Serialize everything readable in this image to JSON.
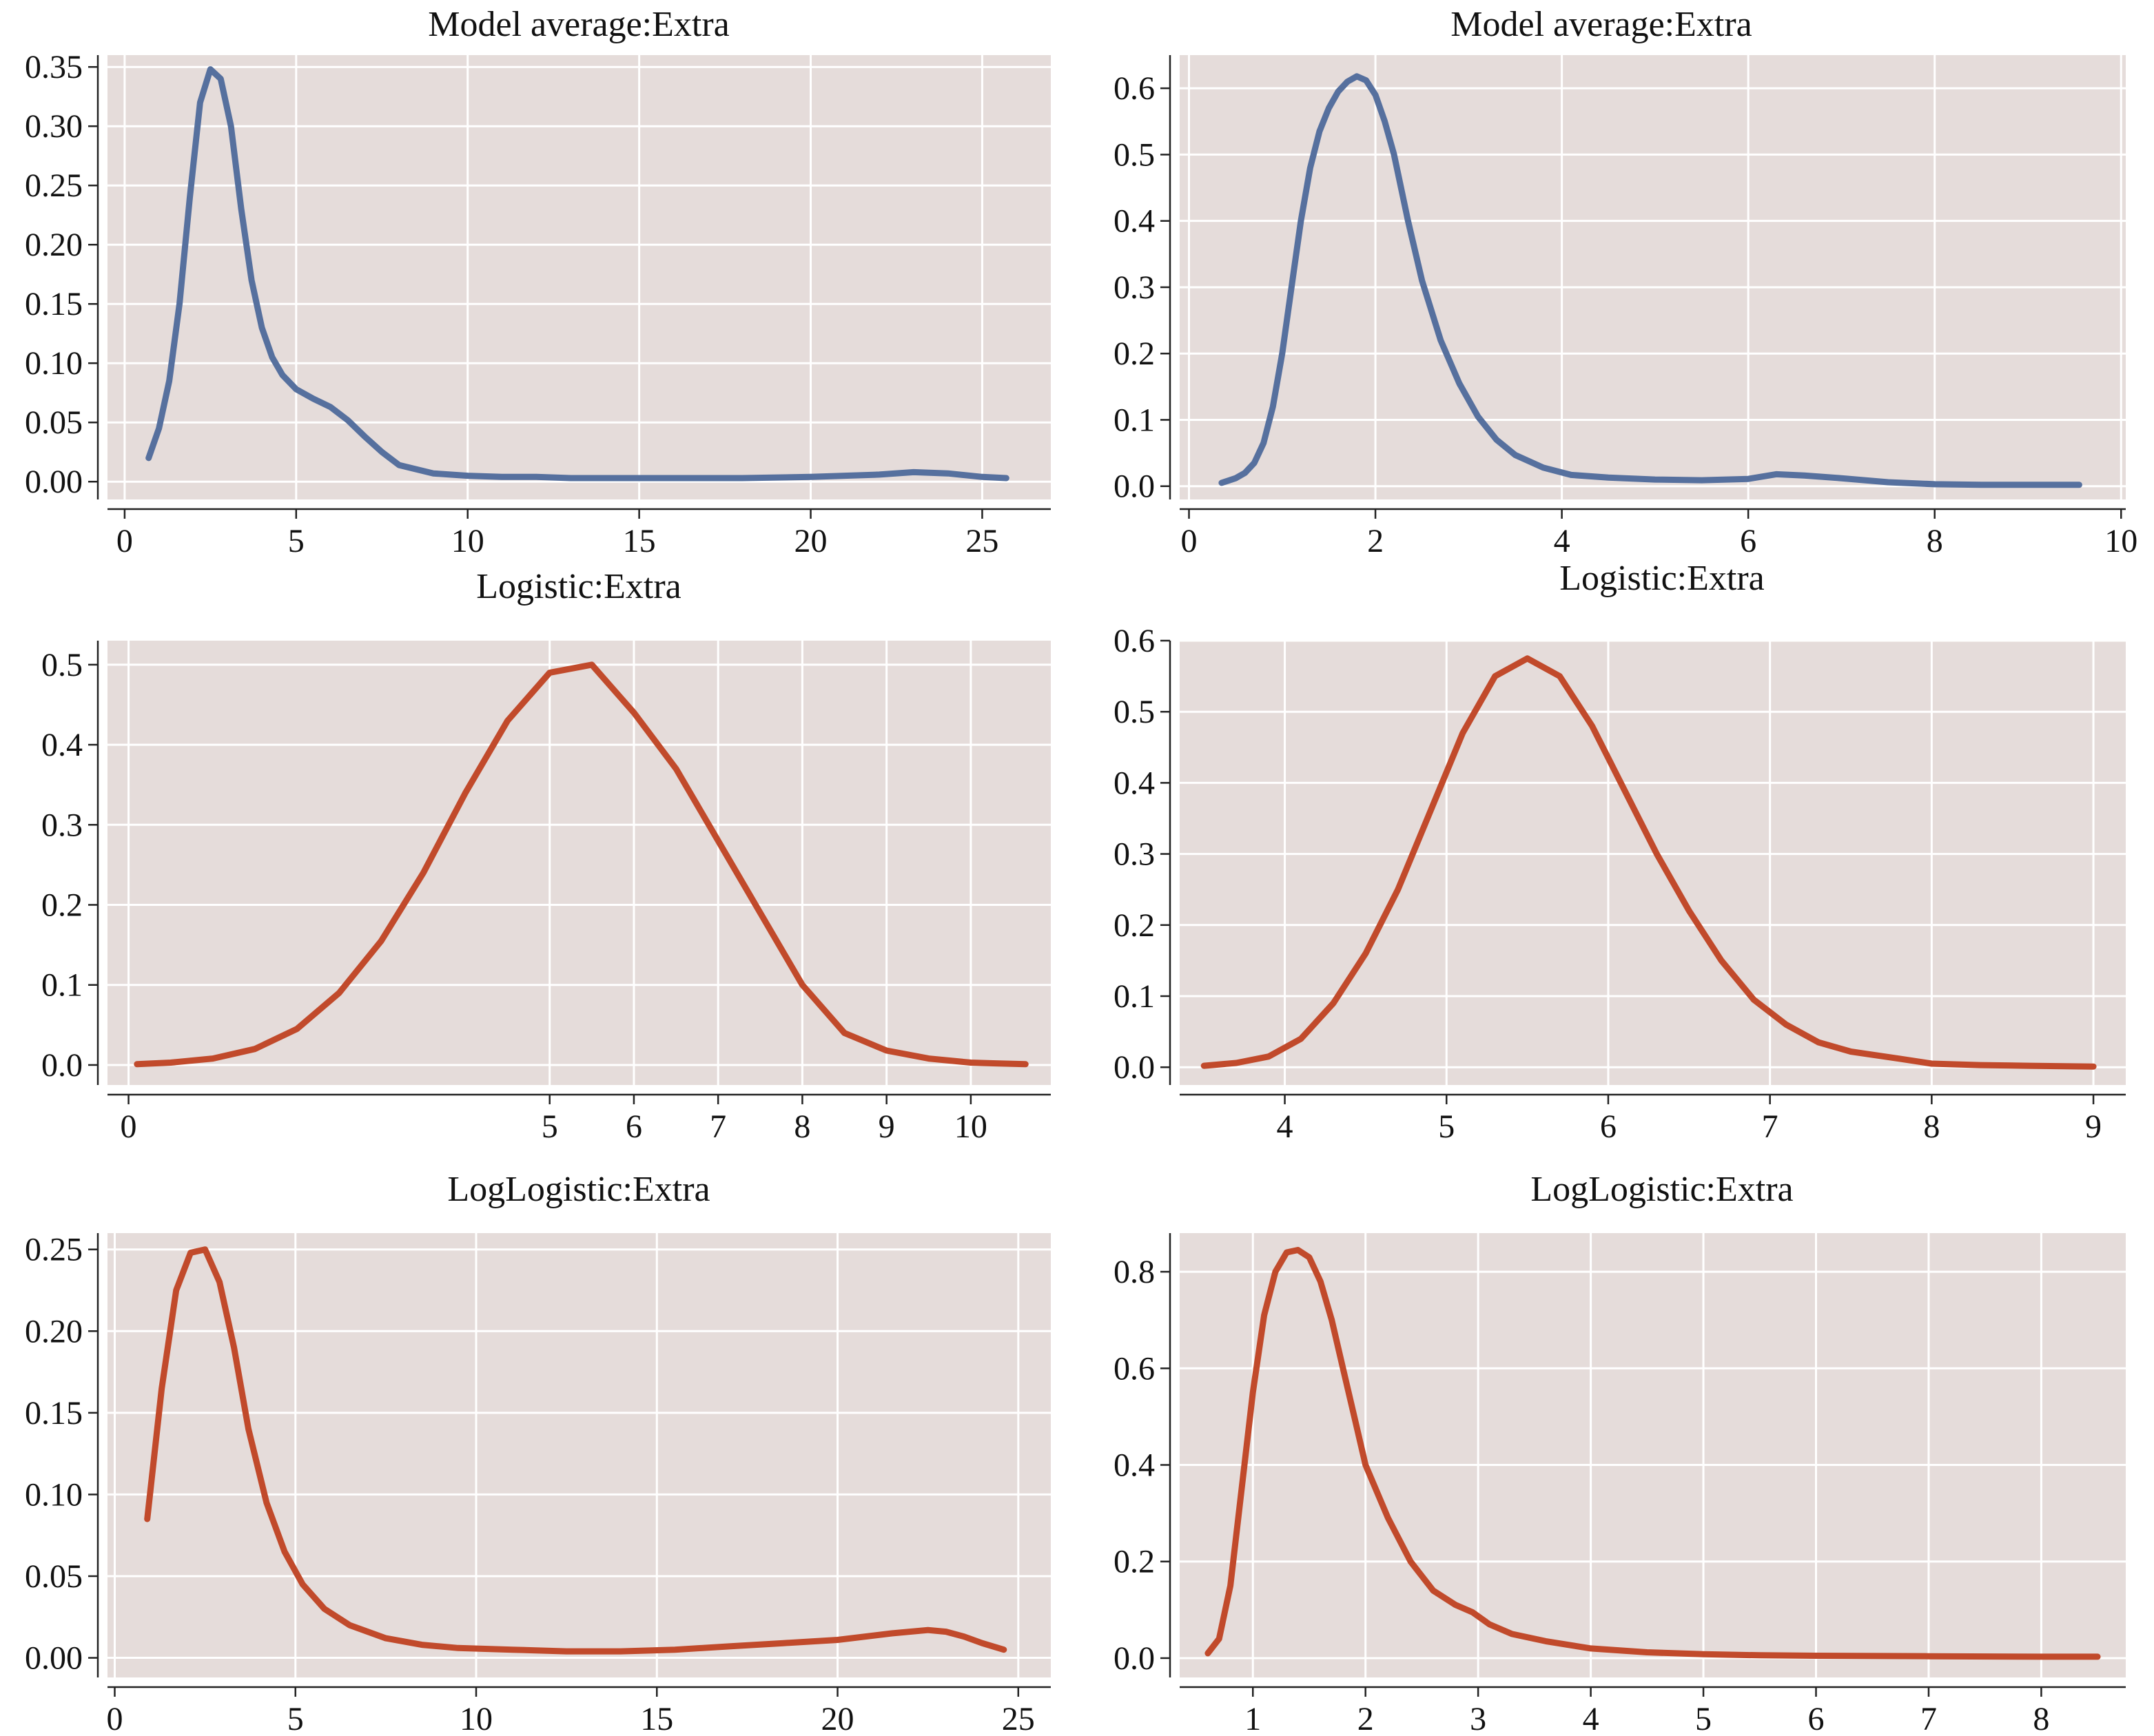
{
  "chart_data": [
    {
      "type": "line",
      "title": "Model average:Extra",
      "color": "#56709e",
      "xlim": [
        -0.5,
        27
      ],
      "ylim": [
        -0.015,
        0.36
      ],
      "xticks": [
        0,
        5,
        10,
        15,
        20,
        25
      ],
      "yticks": [
        0.0,
        0.05,
        0.1,
        0.15,
        0.2,
        0.25,
        0.3,
        0.35
      ],
      "ytick_labels": [
        "0.00",
        "0.05",
        "0.10",
        "0.15",
        "0.20",
        "0.25",
        "0.30",
        "0.35"
      ],
      "xtick_labels": [
        "0",
        "5",
        "10",
        "15",
        "20",
        "25"
      ],
      "series": [
        {
          "x": [
            0.7,
            1.0,
            1.3,
            1.6,
            1.9,
            2.2,
            2.5,
            2.8,
            3.1,
            3.4,
            3.7,
            4.0,
            4.3,
            4.6,
            5.0,
            5.5,
            6.0,
            6.5,
            7.0,
            7.5,
            8.0,
            9.0,
            10.0,
            11.0,
            12.0,
            13.0,
            14.0,
            16.0,
            18.0,
            20.0,
            22.0,
            23.0,
            24.0,
            25.0,
            25.7
          ],
          "y": [
            0.02,
            0.045,
            0.085,
            0.15,
            0.24,
            0.32,
            0.348,
            0.34,
            0.3,
            0.23,
            0.17,
            0.13,
            0.105,
            0.09,
            0.078,
            0.07,
            0.063,
            0.052,
            0.038,
            0.025,
            0.014,
            0.007,
            0.005,
            0.004,
            0.004,
            0.003,
            0.003,
            0.003,
            0.003,
            0.004,
            0.006,
            0.008,
            0.007,
            0.004,
            0.003
          ]
        }
      ]
    },
    {
      "type": "line",
      "title": "Model average:Extra",
      "color": "#56709e",
      "xlim": [
        -0.1,
        10.05
      ],
      "ylim": [
        -0.02,
        0.65
      ],
      "xticks": [
        0,
        2,
        4,
        6,
        8,
        10
      ],
      "yticks": [
        0.0,
        0.1,
        0.2,
        0.3,
        0.4,
        0.5,
        0.6
      ],
      "ytick_labels": [
        "0.0",
        "0.1",
        "0.2",
        "0.3",
        "0.4",
        "0.5",
        "0.6"
      ],
      "xtick_labels": [
        "0",
        "2",
        "4",
        "6",
        "8",
        "10"
      ],
      "series": [
        {
          "x": [
            0.35,
            0.5,
            0.6,
            0.7,
            0.8,
            0.9,
            1.0,
            1.1,
            1.2,
            1.3,
            1.4,
            1.5,
            1.6,
            1.7,
            1.8,
            1.9,
            2.0,
            2.1,
            2.2,
            2.35,
            2.5,
            2.7,
            2.9,
            3.1,
            3.3,
            3.5,
            3.8,
            4.1,
            4.5,
            5.0,
            5.5,
            6.0,
            6.3,
            6.6,
            7.0,
            7.5,
            8.0,
            8.5,
            9.0,
            9.55
          ],
          "y": [
            0.005,
            0.012,
            0.02,
            0.035,
            0.065,
            0.12,
            0.2,
            0.3,
            0.4,
            0.48,
            0.535,
            0.57,
            0.595,
            0.61,
            0.618,
            0.612,
            0.59,
            0.55,
            0.5,
            0.4,
            0.31,
            0.22,
            0.155,
            0.105,
            0.07,
            0.047,
            0.028,
            0.017,
            0.013,
            0.01,
            0.009,
            0.011,
            0.018,
            0.016,
            0.012,
            0.006,
            0.003,
            0.002,
            0.002,
            0.002
          ]
        }
      ]
    },
    {
      "type": "line",
      "title": "Logistic:Extra",
      "color": "#c14a2b",
      "xlim": [
        -0.25,
        10.95
      ],
      "ylim": [
        -0.025,
        0.53
      ],
      "xticks": [
        0,
        5,
        6,
        7,
        8,
        9,
        10
      ],
      "yticks": [
        0.0,
        0.1,
        0.2,
        0.3,
        0.4,
        0.5
      ],
      "ytick_labels": [
        "0.0",
        "0.1",
        "0.2",
        "0.3",
        "0.4",
        "0.5"
      ],
      "xtick_labels": [
        "0",
        "5",
        "6",
        "7",
        "8",
        "9",
        "10"
      ],
      "series": [
        {
          "x": [
            0.1,
            0.5,
            1.0,
            1.5,
            2.0,
            2.5,
            3.0,
            3.5,
            4.0,
            4.5,
            5.0,
            5.5,
            6.0,
            6.5,
            7.0,
            7.5,
            8.0,
            8.5,
            9.0,
            9.5,
            10.0,
            10.3,
            10.65
          ],
          "y": [
            0.001,
            0.003,
            0.008,
            0.02,
            0.045,
            0.09,
            0.155,
            0.24,
            0.34,
            0.43,
            0.49,
            0.5,
            0.44,
            0.37,
            0.28,
            0.19,
            0.1,
            0.04,
            0.018,
            0.008,
            0.003,
            0.002,
            0.001
          ]
        }
      ]
    },
    {
      "type": "line",
      "title": "Logistic:Extra",
      "color": "#c14a2b",
      "xlim": [
        3.35,
        9.2
      ],
      "ylim": [
        -0.025,
        0.6
      ],
      "xticks": [
        4,
        5,
        6,
        7,
        8,
        9
      ],
      "yticks": [
        0.0,
        0.1,
        0.2,
        0.3,
        0.4,
        0.5,
        0.6
      ],
      "ytick_labels": [
        "0.0",
        "0.1",
        "0.2",
        "0.3",
        "0.4",
        "0.5",
        "0.6"
      ],
      "xtick_labels": [
        "4",
        "5",
        "6",
        "7",
        "8",
        "9"
      ],
      "series": [
        {
          "x": [
            3.5,
            3.7,
            3.9,
            4.1,
            4.3,
            4.5,
            4.7,
            4.9,
            5.1,
            5.3,
            5.5,
            5.7,
            5.9,
            6.1,
            6.3,
            6.5,
            6.7,
            6.9,
            7.1,
            7.3,
            7.5,
            7.8,
            8.0,
            8.3,
            8.6,
            9.0
          ],
          "y": [
            0.002,
            0.006,
            0.015,
            0.04,
            0.09,
            0.16,
            0.25,
            0.36,
            0.47,
            0.55,
            0.575,
            0.55,
            0.48,
            0.39,
            0.3,
            0.22,
            0.15,
            0.095,
            0.06,
            0.035,
            0.022,
            0.012,
            0.005,
            0.003,
            0.002,
            0.001
          ]
        }
      ]
    },
    {
      "type": "line",
      "title": "LogLogistic:Extra",
      "color": "#c14a2b",
      "xlim": [
        -0.2,
        25.9
      ],
      "ylim": [
        -0.012,
        0.26
      ],
      "xticks": [
        0,
        5,
        10,
        15,
        20,
        25
      ],
      "yticks": [
        0.0,
        0.05,
        0.1,
        0.15,
        0.2,
        0.25
      ],
      "ytick_labels": [
        "0.00",
        "0.05",
        "0.10",
        "0.15",
        "0.20",
        "0.25"
      ],
      "xtick_labels": [
        "0",
        "5",
        "10",
        "15",
        "20",
        "25"
      ],
      "series": [
        {
          "x": [
            0.9,
            1.3,
            1.7,
            2.1,
            2.5,
            2.9,
            3.3,
            3.7,
            4.2,
            4.7,
            5.2,
            5.8,
            6.5,
            7.5,
            8.5,
            9.5,
            11.0,
            12.5,
            14.0,
            15.5,
            17.0,
            18.5,
            20.0,
            21.5,
            22.5,
            23.0,
            23.5,
            24.0,
            24.6
          ],
          "y": [
            0.085,
            0.165,
            0.225,
            0.248,
            0.25,
            0.23,
            0.19,
            0.14,
            0.095,
            0.065,
            0.045,
            0.03,
            0.02,
            0.012,
            0.008,
            0.006,
            0.005,
            0.004,
            0.004,
            0.005,
            0.007,
            0.009,
            0.011,
            0.015,
            0.017,
            0.016,
            0.013,
            0.009,
            0.005
          ]
        }
      ]
    },
    {
      "type": "line",
      "title": "LogLogistic:Extra",
      "color": "#c14a2b",
      "xlim": [
        0.35,
        8.75
      ],
      "ylim": [
        -0.04,
        0.88
      ],
      "xticks": [
        1,
        2,
        3,
        4,
        5,
        6,
        7,
        8
      ],
      "yticks": [
        0.0,
        0.2,
        0.4,
        0.6,
        0.8
      ],
      "ytick_labels": [
        "0.0",
        "0.2",
        "0.4",
        "0.6",
        "0.8"
      ],
      "xtick_labels": [
        "1",
        "2",
        "3",
        "4",
        "5",
        "6",
        "7",
        "8"
      ],
      "series": [
        {
          "x": [
            0.6,
            0.7,
            0.8,
            0.9,
            1.0,
            1.1,
            1.2,
            1.3,
            1.4,
            1.5,
            1.6,
            1.7,
            1.8,
            1.9,
            2.0,
            2.2,
            2.4,
            2.6,
            2.8,
            2.95,
            3.1,
            3.3,
            3.6,
            4.0,
            4.5,
            5.0,
            5.5,
            6.0,
            7.0,
            8.0,
            8.5
          ],
          "y": [
            0.01,
            0.04,
            0.15,
            0.35,
            0.55,
            0.71,
            0.8,
            0.84,
            0.845,
            0.83,
            0.78,
            0.7,
            0.6,
            0.5,
            0.4,
            0.29,
            0.2,
            0.14,
            0.11,
            0.095,
            0.07,
            0.05,
            0.035,
            0.02,
            0.012,
            0.008,
            0.006,
            0.005,
            0.004,
            0.003,
            0.003
          ]
        }
      ]
    }
  ]
}
